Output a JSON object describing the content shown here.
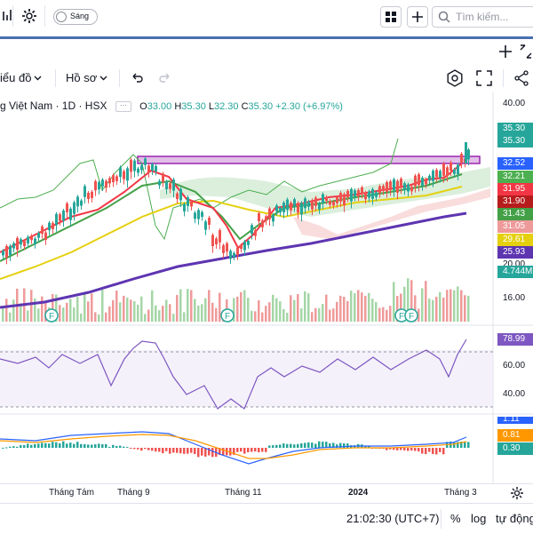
{
  "topbar": {
    "theme_toggle_label": "Sáng",
    "search_placeholder": "Tìm kiếm..."
  },
  "toolbar": {
    "chart_type_label": "iểu đồ",
    "profile_label": "Hồ sơ"
  },
  "legend": {
    "symbol": "g Việt Nam · 1D · HSX",
    "o_label": "O",
    "o_value": "33.00",
    "h_label": "H",
    "h_value": "35.30",
    "l_label": "L",
    "l_value": "32.30",
    "c_label": "C",
    "c_value": "35.30",
    "change": "+2.30 (+6.97%)"
  },
  "price_axis": {
    "ticks": [
      "40.00",
      "20.00",
      "16.00"
    ],
    "tags": [
      {
        "label": "35.30",
        "color": "#26a69a"
      },
      {
        "label": "35.30",
        "color": "#26a69a"
      },
      {
        "label": "32.52",
        "color": "#2962ff"
      },
      {
        "label": "32.21",
        "color": "#4caf50"
      },
      {
        "label": "31.95",
        "color": "#f23645"
      },
      {
        "label": "31.90",
        "color": "#b71c1c"
      },
      {
        "label": "31.43",
        "color": "#43a047"
      },
      {
        "label": "31.05",
        "color": "#ef9a9a"
      },
      {
        "label": "29.61",
        "color": "#e5d00f"
      },
      {
        "label": "25.93",
        "color": "#5e35b1"
      },
      {
        "label": "4.744M",
        "color": "#26a69a"
      }
    ]
  },
  "rsi": {
    "value": "78.99",
    "ticks": [
      "60.00",
      "40.00"
    ]
  },
  "macd": {
    "values": [
      "1.11",
      "0.81",
      "0.30"
    ]
  },
  "time_axis": {
    "labels": [
      "Tháng Tám",
      "Tháng 9",
      "Tháng 11",
      "2024",
      "Tháng 3"
    ]
  },
  "bottom": {
    "clock": "21:02:30 (UTC+7)",
    "percent": "%",
    "log": "log",
    "auto": "tự động"
  },
  "colors": {
    "up": "#26a69a",
    "down": "#ef5350",
    "accent": "#2962ff",
    "rsi": "#7e57c2",
    "ma200": "#5e35b1",
    "ma": "#e5d00f"
  }
}
